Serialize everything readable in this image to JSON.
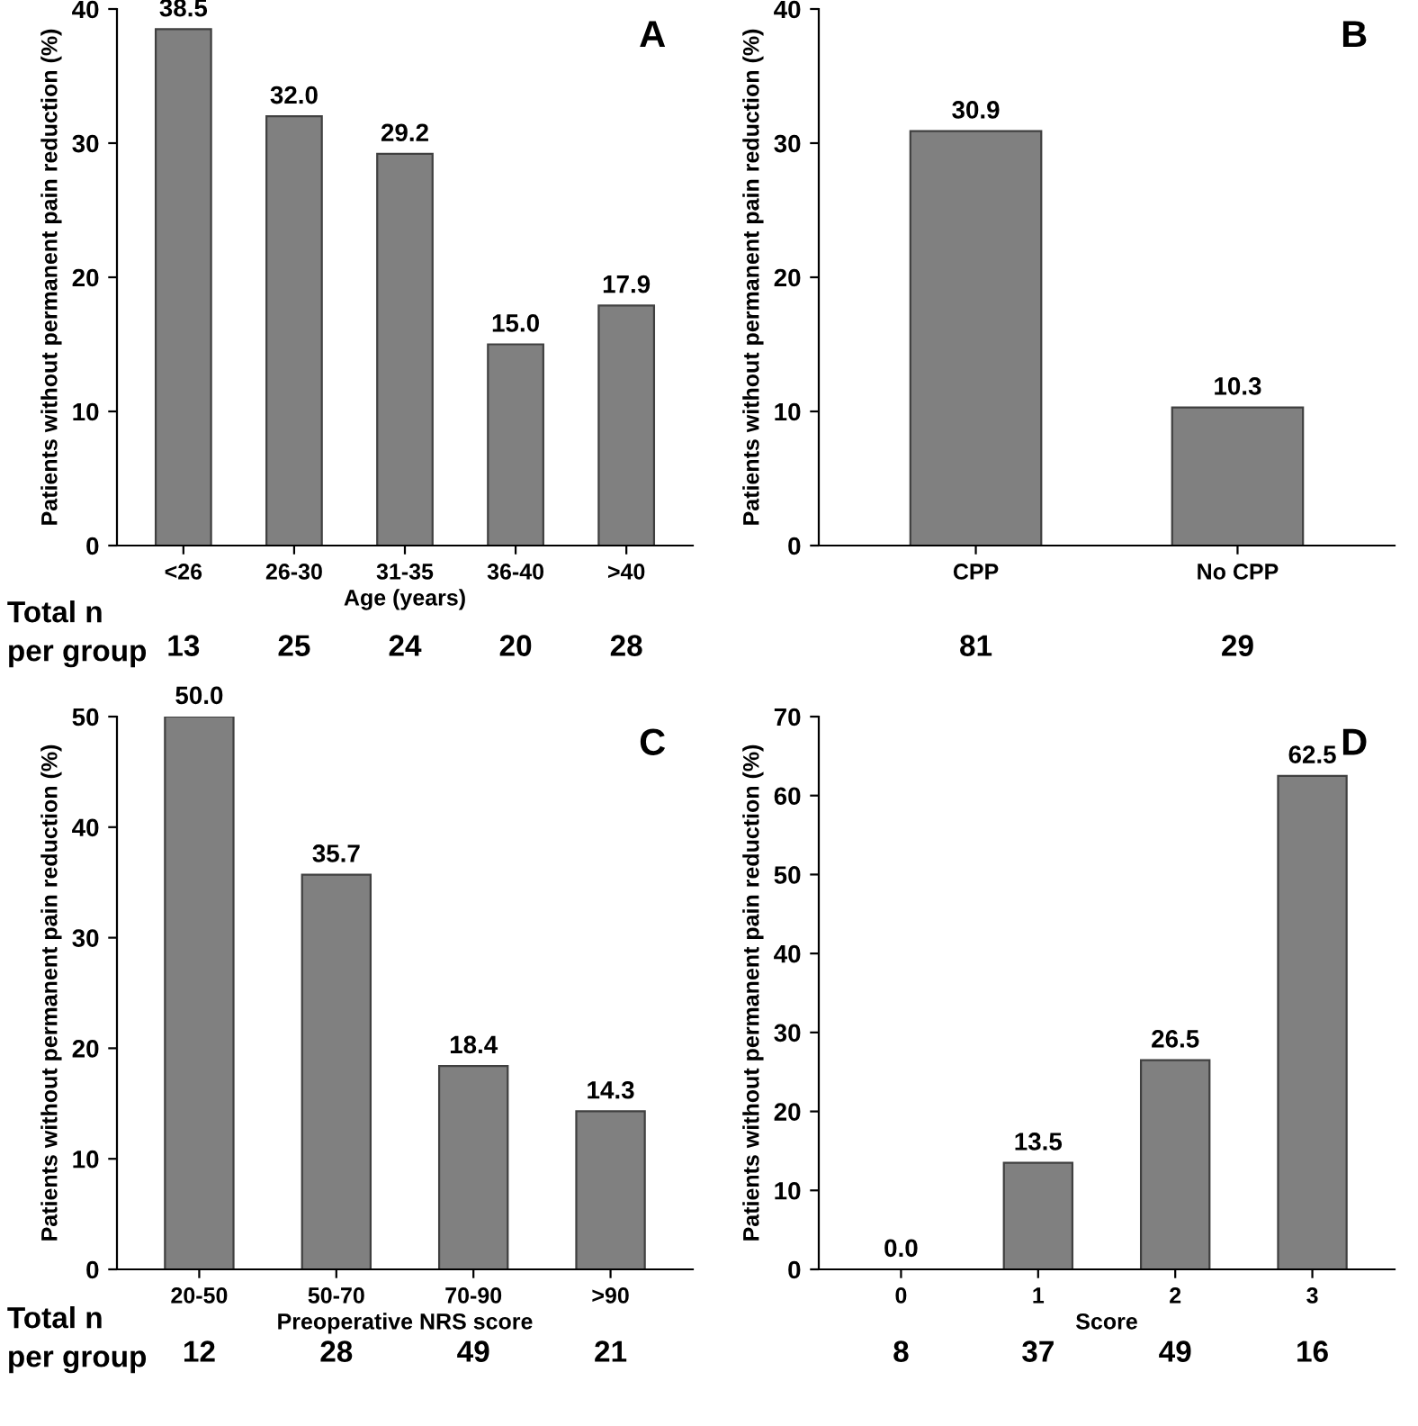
{
  "chart_data": [
    {
      "type": "bar",
      "title": "A",
      "xlabel": "Age (years)",
      "ylabel": "Patients without permanent pain reduction (%)",
      "categories": [
        "<26",
        "26-30",
        "31-35",
        "36-40",
        ">40"
      ],
      "values": [
        38.5,
        32.0,
        29.2,
        15.0,
        17.9
      ],
      "value_labels": [
        "38.5",
        "32.0",
        "29.2",
        "15.0",
        "17.9"
      ],
      "color": "#808080",
      "ylim": [
        0,
        40
      ],
      "yticks": [
        0,
        10,
        20,
        30,
        40
      ],
      "grid": false,
      "legend": false,
      "annotations": [
        "Total n\nper group",
        "13",
        "25",
        "24",
        "20",
        "28"
      ]
    },
    {
      "type": "bar",
      "title": "B",
      "ylabel": "Patients without permanent pain reduction (%)",
      "categories": [
        "CPP",
        "No CPP"
      ],
      "values": [
        30.9,
        10.3
      ],
      "value_labels": [
        "30.9",
        "10.3"
      ],
      "color": "#808080",
      "ylim": [
        0,
        40
      ],
      "yticks": [
        0,
        10,
        20,
        30,
        40
      ],
      "grid": false,
      "legend": false,
      "annotations": [
        "81",
        "29"
      ]
    },
    {
      "type": "bar",
      "title": "C",
      "xlabel": "Preoperative NRS score",
      "ylabel": "Patients without permanent pain reduction (%)",
      "categories": [
        "20-50",
        "50-70",
        "70-90",
        ">90"
      ],
      "values": [
        50.0,
        35.7,
        18.4,
        14.3
      ],
      "value_labels": [
        "50.0",
        "35.7",
        "18.4",
        "14.3"
      ],
      "color": "#808080",
      "ylim": [
        0,
        50
      ],
      "yticks": [
        0,
        10,
        20,
        30,
        40,
        50
      ],
      "grid": false,
      "legend": false,
      "annotations": [
        "Total n\nper group",
        "12",
        "28",
        "49",
        "21"
      ]
    },
    {
      "type": "bar",
      "title": "D",
      "xlabel": "Score",
      "ylabel": "Patients without permanent pain reduction (%)",
      "categories": [
        "0",
        "1",
        "2",
        "3"
      ],
      "values": [
        0.0,
        13.5,
        26.5,
        62.5
      ],
      "value_labels": [
        "0.0",
        "13.5",
        "26.5",
        "62.5"
      ],
      "color": "#808080",
      "ylim": [
        0,
        70
      ],
      "yticks": [
        0,
        10,
        20,
        30,
        40,
        50,
        60,
        70
      ],
      "grid": false,
      "legend": false,
      "annotations": [
        "8",
        "37",
        "49",
        "16"
      ]
    }
  ]
}
